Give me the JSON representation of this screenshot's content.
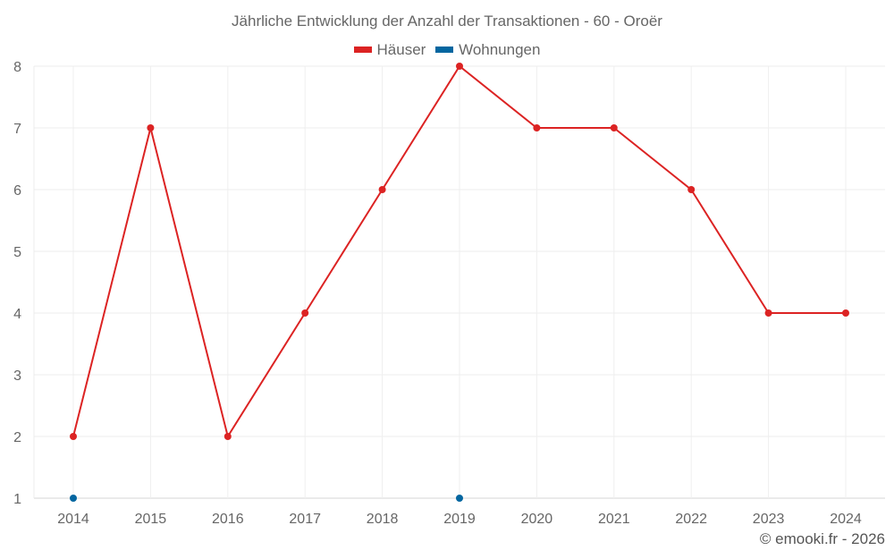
{
  "chart_data": {
    "type": "line",
    "title": "Jährliche Entwicklung der Anzahl der Transaktionen - 60 - Oroër",
    "xlabel": "",
    "ylabel": "",
    "categories": [
      "2014",
      "2015",
      "2016",
      "2017",
      "2018",
      "2019",
      "2020",
      "2021",
      "2022",
      "2023",
      "2024"
    ],
    "ylim": [
      1,
      8
    ],
    "yticks": [
      "1",
      "2",
      "3",
      "4",
      "5",
      "6",
      "7",
      "8"
    ],
    "grid": true,
    "legend_position": "top-center",
    "series": [
      {
        "name": "Häuser",
        "color": "#dc2323",
        "values": [
          2,
          7,
          2,
          4,
          6,
          8,
          7,
          7,
          6,
          4,
          4
        ]
      },
      {
        "name": "Wohnungen",
        "color": "#0366a0",
        "values": [
          1,
          null,
          null,
          null,
          null,
          1,
          null,
          null,
          null,
          null,
          null
        ]
      }
    ]
  },
  "credit": "© emooki.fr - 2026"
}
